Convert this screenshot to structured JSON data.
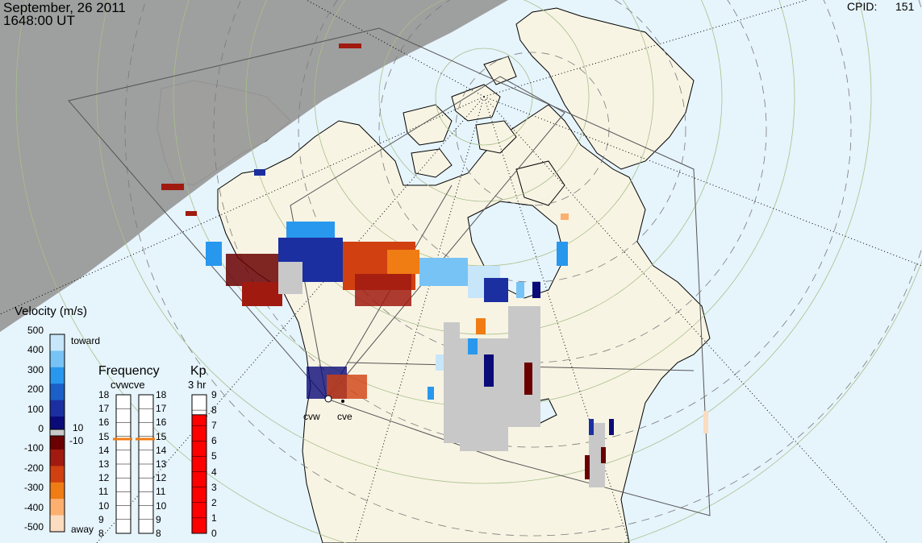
{
  "header": {
    "date": "September, 26 2011",
    "time": "1648:00 UT",
    "cpid_label": "CPID:",
    "cpid_value": "151"
  },
  "colors": {
    "ocean": "#e6f4fc",
    "land": "#f8f4e4",
    "night": "#9a9a9a",
    "ground_scatter": "#c8c8c8"
  },
  "radars": [
    {
      "name": "cvw"
    },
    {
      "name": "cve"
    }
  ],
  "velocity_scale": {
    "title": "Velocity (m/s)",
    "ticks": [
      "500",
      "400",
      "300",
      "200",
      "100",
      "0",
      "-100",
      "-200",
      "-300",
      "-400",
      "-500"
    ],
    "toward_label": "toward",
    "away_label": "away",
    "gs_upper": "10",
    "gs_lower": "-10",
    "colors": [
      "#c8e6fa",
      "#78c3f5",
      "#2898ee",
      "#1a60c8",
      "#1b2fa0",
      "#0a0a78",
      "#6a0000",
      "#a01a10",
      "#d04010",
      "#f07c14",
      "#fcb070",
      "#fbdcc0"
    ]
  },
  "frequency": {
    "title": "Frequency",
    "subtitle": "cvwcve",
    "ticks": [
      "18",
      "17",
      "16",
      "15",
      "14",
      "13",
      "12",
      "11",
      "10",
      "9",
      "8"
    ],
    "cvw_mhz": 14.8,
    "cve_mhz": 14.8
  },
  "kp": {
    "title": "Kp",
    "subtitle": "3 hr",
    "ticks": [
      "9",
      "8",
      "7",
      "6",
      "5",
      "4",
      "3",
      "2",
      "1",
      "0"
    ],
    "value": 7.7
  }
}
